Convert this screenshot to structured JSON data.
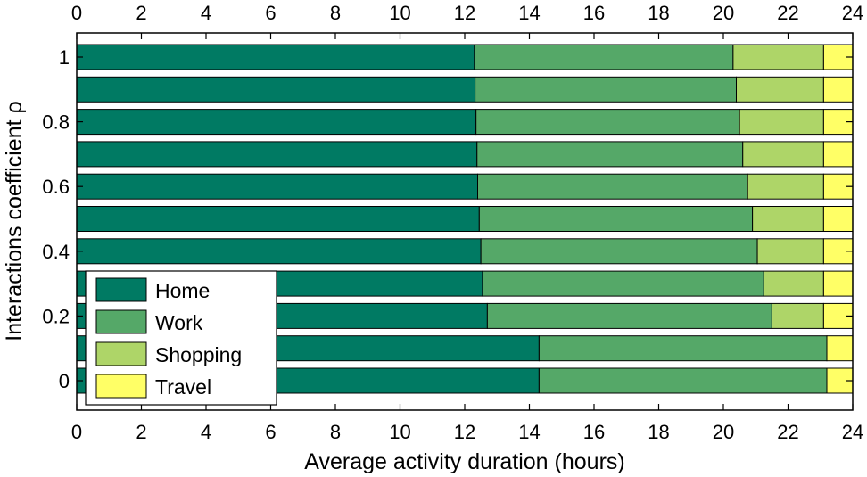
{
  "chart_data": {
    "type": "bar",
    "orientation": "horizontal",
    "stacked": true,
    "xlabel": "Average activity duration (hours)",
    "ylabel": "Interactions coefficient  ρ",
    "xlim": [
      0,
      24
    ],
    "x_ticks": [
      "0",
      "2",
      "4",
      "6",
      "8",
      "10",
      "12",
      "14",
      "16",
      "18",
      "20",
      "22",
      "24"
    ],
    "y_ticks": [
      "0",
      "0.2",
      "0.4",
      "0.6",
      "0.8",
      "1"
    ],
    "grid": false,
    "legend_position": "bottom-left",
    "categories": [
      "0",
      "0.1",
      "0.2",
      "0.3",
      "0.4",
      "0.5",
      "0.6",
      "0.7",
      "0.8",
      "0.9",
      "1"
    ],
    "series": [
      {
        "name": "Home",
        "color": "#007A63",
        "values": [
          14.3,
          14.3,
          12.7,
          12.55,
          12.5,
          12.45,
          12.4,
          12.38,
          12.35,
          12.32,
          12.3
        ]
      },
      {
        "name": "Work",
        "color": "#55A868",
        "values": [
          8.9,
          8.9,
          8.8,
          8.7,
          8.55,
          8.45,
          8.35,
          8.22,
          8.15,
          8.08,
          8.0
        ]
      },
      {
        "name": "Shopping",
        "color": "#AED568",
        "values": [
          0.0,
          0.0,
          1.6,
          1.85,
          2.05,
          2.2,
          2.35,
          2.5,
          2.6,
          2.7,
          2.8
        ]
      },
      {
        "name": "Travel",
        "color": "#FFFF66",
        "values": [
          0.8,
          0.8,
          0.9,
          0.9,
          0.9,
          0.9,
          0.9,
          0.9,
          0.9,
          0.9,
          0.9
        ]
      }
    ]
  }
}
